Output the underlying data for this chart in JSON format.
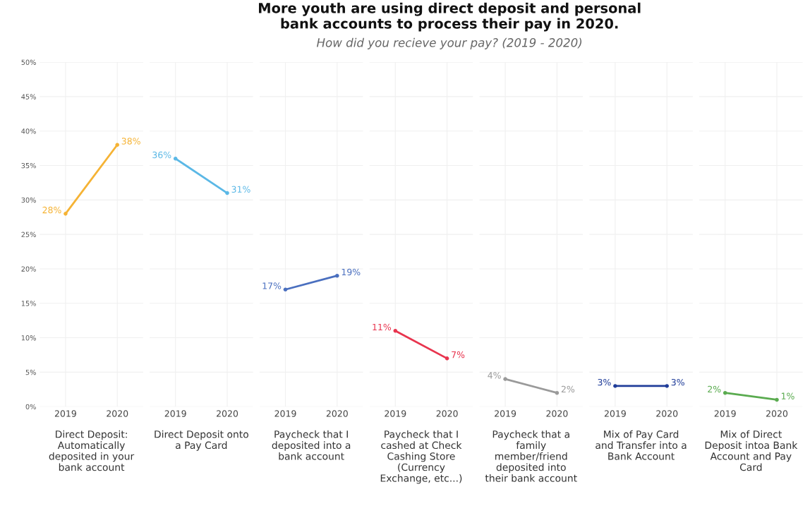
{
  "chart_data": [
    {
      "type": "other",
      "title": "More youth are using direct deposit and personal\nbank accounts to process their pay in 2020.",
      "subtitle": "How did you recieve your pay? (2019 - 2020)"
    },
    {
      "type": "line",
      "categories": [
        "2019",
        "2020"
      ],
      "values": [
        28,
        38
      ],
      "value_labels": [
        "28%",
        "38%"
      ],
      "color": "#f5b335",
      "xlabel": "Direct Deposit:\nAutomatically\ndeposited in your\nbank account",
      "ylim": [
        0,
        50
      ],
      "yticks": [
        {
          "value": 0,
          "label": "0%"
        },
        {
          "value": 5,
          "label": "5%"
        },
        {
          "value": 10,
          "label": "10%"
        },
        {
          "value": 15,
          "label": "15%"
        },
        {
          "value": 20,
          "label": "20%"
        },
        {
          "value": 25,
          "label": "25%"
        },
        {
          "value": 30,
          "label": "30%"
        },
        {
          "value": 35,
          "label": "35%"
        },
        {
          "value": 40,
          "label": "40%"
        },
        {
          "value": 45,
          "label": "45%"
        },
        {
          "value": 50,
          "label": "50%"
        }
      ],
      "grid": true,
      "marker": "circle"
    },
    {
      "type": "line",
      "categories": [
        "2019",
        "2020"
      ],
      "values": [
        36,
        31
      ],
      "value_labels": [
        "36%",
        "31%"
      ],
      "color": "#5bb8e6",
      "xlabel": "Direct Deposit onto\na Pay Card",
      "ylim": [
        0,
        50
      ],
      "tick_labels": "x",
      "grid": true,
      "marker": "circle"
    },
    {
      "type": "line",
      "categories": [
        "2019",
        "2020"
      ],
      "values": [
        17,
        19
      ],
      "value_labels": [
        "17%",
        "19%"
      ],
      "color": "#4a6fbf",
      "xlabel": "Paycheck that I\ndeposited into a\nbank account",
      "ylim": [
        0,
        50
      ],
      "tick_labels": "x",
      "grid": true,
      "marker": "circle"
    },
    {
      "type": "line",
      "categories": [
        "2019",
        "2020"
      ],
      "values": [
        11,
        7
      ],
      "value_labels": [
        "11%",
        "7%"
      ],
      "color": "#e8344e",
      "xlabel": "Paycheck that I\ncashed at Check\nCashing Store\n(Currency\nExchange, etc...)",
      "ylim": [
        0,
        50
      ],
      "tick_labels": "x",
      "grid": true,
      "marker": "circle"
    },
    {
      "type": "line",
      "categories": [
        "2019",
        "2020"
      ],
      "values": [
        4,
        2
      ],
      "value_labels": [
        "4%",
        "2%"
      ],
      "color": "#9a9a9a",
      "xlabel": "Paycheck that a\nfamily\nmember/friend\ndeposited into\ntheir bank account",
      "ylim": [
        0,
        50
      ],
      "tick_labels": "x",
      "grid": true,
      "marker": "circle"
    },
    {
      "type": "line",
      "categories": [
        "2019",
        "2020"
      ],
      "values": [
        3,
        3
      ],
      "value_labels": [
        "3%",
        "3%"
      ],
      "color": "#1f3c99",
      "xlabel": "Mix of Pay Card\nand Transfer into a\nBank Account",
      "ylim": [
        0,
        50
      ],
      "tick_labels": "x",
      "grid": true,
      "marker": "circle"
    },
    {
      "type": "line",
      "categories": [
        "2019",
        "2020"
      ],
      "values": [
        2,
        1
      ],
      "value_labels": [
        "2%",
        "1%"
      ],
      "color": "#5aab4f",
      "xlabel": "Mix of Direct\nDeposit intoa Bank\nAccount and Pay\nCard",
      "ylim": [
        0,
        50
      ],
      "tick_labels": "x",
      "grid": true,
      "marker": "circle"
    }
  ]
}
